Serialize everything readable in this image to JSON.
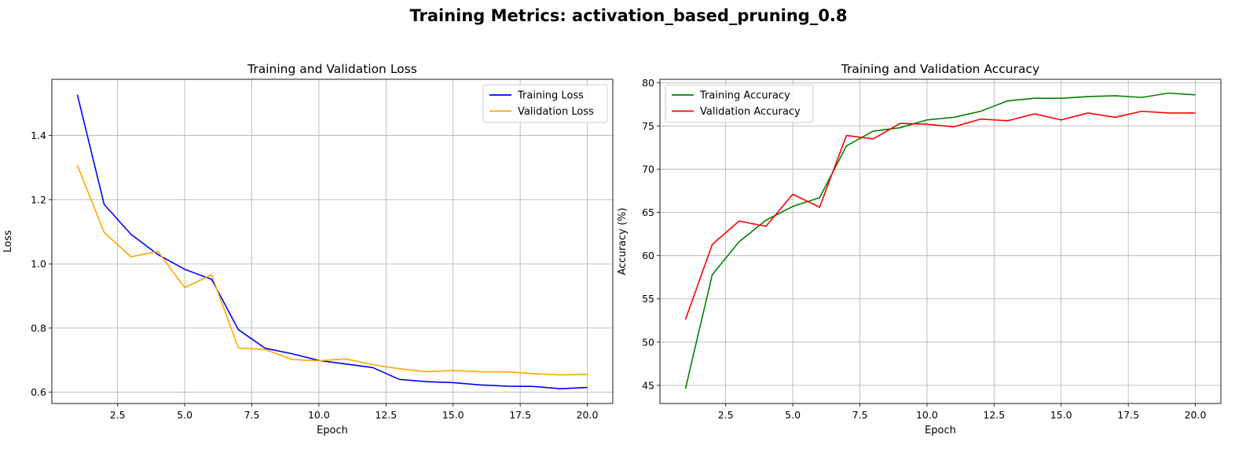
{
  "figure": {
    "title": "Training Metrics: activation_based_pruning_0.8"
  },
  "chart_data": [
    {
      "type": "line",
      "title": "Training and Validation Loss",
      "xlabel": "Epoch",
      "ylabel": "Loss",
      "xlim": [
        0.05,
        20.95
      ],
      "ylim": [
        0.565,
        1.575
      ],
      "xticks": [
        2.5,
        5.0,
        7.5,
        10.0,
        12.5,
        15.0,
        17.5,
        20.0
      ],
      "xtick_labels": [
        "2.5",
        "5.0",
        "7.5",
        "10.0",
        "12.5",
        "15.0",
        "17.5",
        "20.0"
      ],
      "yticks": [
        0.6,
        0.8,
        1.0,
        1.2,
        1.4
      ],
      "ytick_labels": [
        "0.6",
        "0.8",
        "1.0",
        "1.2",
        "1.4"
      ],
      "grid": true,
      "legend_position": "upper right",
      "x": [
        1,
        2,
        3,
        4,
        5,
        6,
        7,
        8,
        9,
        10,
        11,
        12,
        13,
        14,
        15,
        16,
        17,
        18,
        19,
        20
      ],
      "series": [
        {
          "name": "Training Loss",
          "color": "#0000ff",
          "values": [
            1.527,
            1.185,
            1.092,
            1.029,
            0.983,
            0.952,
            0.795,
            0.737,
            0.72,
            0.699,
            0.688,
            0.677,
            0.64,
            0.633,
            0.63,
            0.623,
            0.619,
            0.618,
            0.611,
            0.615
          ]
        },
        {
          "name": "Validation Loss",
          "color": "#ffa500",
          "values": [
            1.307,
            1.098,
            1.022,
            1.039,
            0.926,
            0.966,
            0.738,
            0.733,
            0.702,
            0.698,
            0.704,
            0.686,
            0.673,
            0.664,
            0.668,
            0.664,
            0.664,
            0.658,
            0.654,
            0.656
          ]
        }
      ]
    },
    {
      "type": "line",
      "title": "Training and Validation Accuracy",
      "xlabel": "Epoch",
      "ylabel": "Accuracy (%)",
      "xlim": [
        0.05,
        20.95
      ],
      "ylim": [
        42.9,
        80.4
      ],
      "xticks": [
        2.5,
        5.0,
        7.5,
        10.0,
        12.5,
        15.0,
        17.5,
        20.0
      ],
      "xtick_labels": [
        "2.5",
        "5.0",
        "7.5",
        "10.0",
        "12.5",
        "15.0",
        "17.5",
        "20.0"
      ],
      "yticks": [
        45,
        50,
        55,
        60,
        65,
        70,
        75,
        80
      ],
      "ytick_labels": [
        "45",
        "50",
        "55",
        "60",
        "65",
        "70",
        "75",
        "80"
      ],
      "grid": true,
      "legend_position": "upper left",
      "x": [
        1,
        2,
        3,
        4,
        5,
        6,
        7,
        8,
        9,
        10,
        11,
        12,
        13,
        14,
        15,
        16,
        17,
        18,
        19,
        20
      ],
      "series": [
        {
          "name": "Training Accuracy",
          "color": "#008000",
          "values": [
            44.6,
            57.8,
            61.6,
            64.1,
            65.7,
            66.7,
            72.7,
            74.4,
            74.8,
            75.7,
            76.0,
            76.7,
            77.9,
            78.2,
            78.2,
            78.4,
            78.5,
            78.3,
            78.8,
            78.6
          ]
        },
        {
          "name": "Validation Accuracy",
          "color": "#ff0000",
          "values": [
            52.6,
            61.3,
            64.0,
            63.4,
            67.1,
            65.6,
            73.9,
            73.5,
            75.3,
            75.2,
            74.9,
            75.8,
            75.6,
            76.4,
            75.7,
            76.5,
            76.0,
            76.7,
            76.5,
            76.5
          ]
        }
      ]
    }
  ]
}
